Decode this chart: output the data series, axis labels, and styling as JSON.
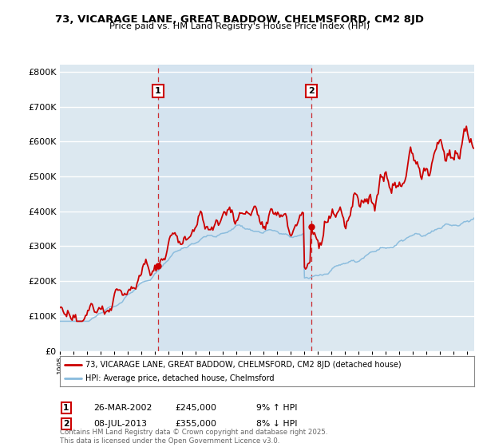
{
  "title": "73, VICARAGE LANE, GREAT BADDOW, CHELMSFORD, CM2 8JD",
  "subtitle": "Price paid vs. HM Land Registry's House Price Index (HPI)",
  "ylim": [
    0,
    820000
  ],
  "yticks": [
    0,
    100000,
    200000,
    300000,
    400000,
    500000,
    600000,
    700000,
    800000
  ],
  "ytick_labels": [
    "£0",
    "£100K",
    "£200K",
    "£300K",
    "£400K",
    "£500K",
    "£600K",
    "£700K",
    "£800K"
  ],
  "x_start_year": 1995,
  "x_end_year": 2025,
  "sale1_year": 2002.23,
  "sale1_price": 245000,
  "sale1_label": "26-MAR-2002",
  "sale1_pct": "9% ↑ HPI",
  "sale2_year": 2013.52,
  "sale2_price": 355000,
  "sale2_label": "08-JUL-2013",
  "sale2_pct": "8% ↓ HPI",
  "legend_label1": "73, VICARAGE LANE, GREAT BADDOW, CHELMSFORD, CM2 8JD (detached house)",
  "legend_label2": "HPI: Average price, detached house, Chelmsford",
  "footer": "Contains HM Land Registry data © Crown copyright and database right 2025.\nThis data is licensed under the Open Government Licence v3.0.",
  "price_color": "#cc0000",
  "hpi_color": "#88bbdd",
  "vline_color": "#cc0000",
  "bg_color": "#dce8f0",
  "grid_color": "#ffffff",
  "annotation_box_color": "#cc0000",
  "sale_dot_color": "#cc0000"
}
